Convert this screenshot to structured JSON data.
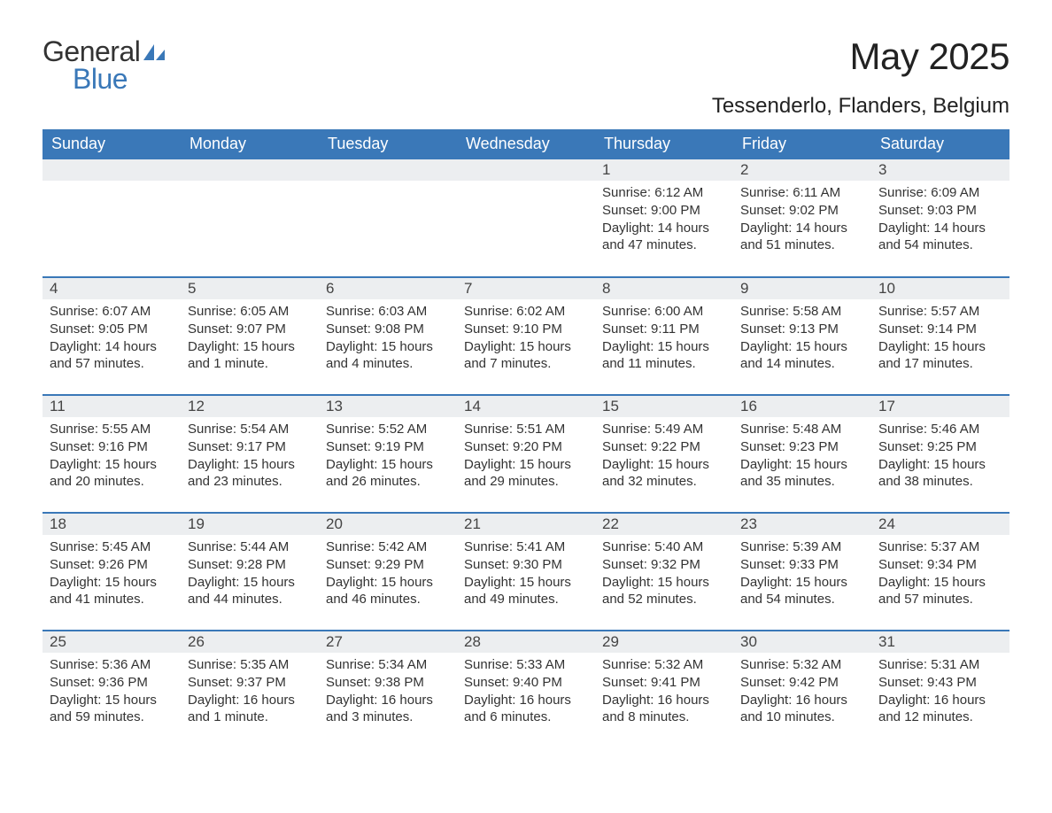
{
  "colors": {
    "header_bg": "#3a78b8",
    "header_text": "#ffffff",
    "daynum_bg": "#eceef0",
    "border": "#3a78b8",
    "body_text": "#333333",
    "logo_blue": "#3a78b8"
  },
  "fonts": {
    "family": "Arial, Helvetica, sans-serif",
    "title_size_pt": 32,
    "location_size_pt": 18,
    "dow_size_pt": 14,
    "body_size_pt": 11
  },
  "logo": {
    "text1": "General",
    "text2": "Blue"
  },
  "title": "May 2025",
  "location": "Tessenderlo, Flanders, Belgium",
  "days_of_week": [
    "Sunday",
    "Monday",
    "Tuesday",
    "Wednesday",
    "Thursday",
    "Friday",
    "Saturday"
  ],
  "weeks": [
    [
      null,
      null,
      null,
      null,
      {
        "n": "1",
        "sr": "Sunrise: 6:12 AM",
        "ss": "Sunset: 9:00 PM",
        "d1": "Daylight: 14 hours",
        "d2": "and 47 minutes."
      },
      {
        "n": "2",
        "sr": "Sunrise: 6:11 AM",
        "ss": "Sunset: 9:02 PM",
        "d1": "Daylight: 14 hours",
        "d2": "and 51 minutes."
      },
      {
        "n": "3",
        "sr": "Sunrise: 6:09 AM",
        "ss": "Sunset: 9:03 PM",
        "d1": "Daylight: 14 hours",
        "d2": "and 54 minutes."
      }
    ],
    [
      {
        "n": "4",
        "sr": "Sunrise: 6:07 AM",
        "ss": "Sunset: 9:05 PM",
        "d1": "Daylight: 14 hours",
        "d2": "and 57 minutes."
      },
      {
        "n": "5",
        "sr": "Sunrise: 6:05 AM",
        "ss": "Sunset: 9:07 PM",
        "d1": "Daylight: 15 hours",
        "d2": "and 1 minute."
      },
      {
        "n": "6",
        "sr": "Sunrise: 6:03 AM",
        "ss": "Sunset: 9:08 PM",
        "d1": "Daylight: 15 hours",
        "d2": "and 4 minutes."
      },
      {
        "n": "7",
        "sr": "Sunrise: 6:02 AM",
        "ss": "Sunset: 9:10 PM",
        "d1": "Daylight: 15 hours",
        "d2": "and 7 minutes."
      },
      {
        "n": "8",
        "sr": "Sunrise: 6:00 AM",
        "ss": "Sunset: 9:11 PM",
        "d1": "Daylight: 15 hours",
        "d2": "and 11 minutes."
      },
      {
        "n": "9",
        "sr": "Sunrise: 5:58 AM",
        "ss": "Sunset: 9:13 PM",
        "d1": "Daylight: 15 hours",
        "d2": "and 14 minutes."
      },
      {
        "n": "10",
        "sr": "Sunrise: 5:57 AM",
        "ss": "Sunset: 9:14 PM",
        "d1": "Daylight: 15 hours",
        "d2": "and 17 minutes."
      }
    ],
    [
      {
        "n": "11",
        "sr": "Sunrise: 5:55 AM",
        "ss": "Sunset: 9:16 PM",
        "d1": "Daylight: 15 hours",
        "d2": "and 20 minutes."
      },
      {
        "n": "12",
        "sr": "Sunrise: 5:54 AM",
        "ss": "Sunset: 9:17 PM",
        "d1": "Daylight: 15 hours",
        "d2": "and 23 minutes."
      },
      {
        "n": "13",
        "sr": "Sunrise: 5:52 AM",
        "ss": "Sunset: 9:19 PM",
        "d1": "Daylight: 15 hours",
        "d2": "and 26 minutes."
      },
      {
        "n": "14",
        "sr": "Sunrise: 5:51 AM",
        "ss": "Sunset: 9:20 PM",
        "d1": "Daylight: 15 hours",
        "d2": "and 29 minutes."
      },
      {
        "n": "15",
        "sr": "Sunrise: 5:49 AM",
        "ss": "Sunset: 9:22 PM",
        "d1": "Daylight: 15 hours",
        "d2": "and 32 minutes."
      },
      {
        "n": "16",
        "sr": "Sunrise: 5:48 AM",
        "ss": "Sunset: 9:23 PM",
        "d1": "Daylight: 15 hours",
        "d2": "and 35 minutes."
      },
      {
        "n": "17",
        "sr": "Sunrise: 5:46 AM",
        "ss": "Sunset: 9:25 PM",
        "d1": "Daylight: 15 hours",
        "d2": "and 38 minutes."
      }
    ],
    [
      {
        "n": "18",
        "sr": "Sunrise: 5:45 AM",
        "ss": "Sunset: 9:26 PM",
        "d1": "Daylight: 15 hours",
        "d2": "and 41 minutes."
      },
      {
        "n": "19",
        "sr": "Sunrise: 5:44 AM",
        "ss": "Sunset: 9:28 PM",
        "d1": "Daylight: 15 hours",
        "d2": "and 44 minutes."
      },
      {
        "n": "20",
        "sr": "Sunrise: 5:42 AM",
        "ss": "Sunset: 9:29 PM",
        "d1": "Daylight: 15 hours",
        "d2": "and 46 minutes."
      },
      {
        "n": "21",
        "sr": "Sunrise: 5:41 AM",
        "ss": "Sunset: 9:30 PM",
        "d1": "Daylight: 15 hours",
        "d2": "and 49 minutes."
      },
      {
        "n": "22",
        "sr": "Sunrise: 5:40 AM",
        "ss": "Sunset: 9:32 PM",
        "d1": "Daylight: 15 hours",
        "d2": "and 52 minutes."
      },
      {
        "n": "23",
        "sr": "Sunrise: 5:39 AM",
        "ss": "Sunset: 9:33 PM",
        "d1": "Daylight: 15 hours",
        "d2": "and 54 minutes."
      },
      {
        "n": "24",
        "sr": "Sunrise: 5:37 AM",
        "ss": "Sunset: 9:34 PM",
        "d1": "Daylight: 15 hours",
        "d2": "and 57 minutes."
      }
    ],
    [
      {
        "n": "25",
        "sr": "Sunrise: 5:36 AM",
        "ss": "Sunset: 9:36 PM",
        "d1": "Daylight: 15 hours",
        "d2": "and 59 minutes."
      },
      {
        "n": "26",
        "sr": "Sunrise: 5:35 AM",
        "ss": "Sunset: 9:37 PM",
        "d1": "Daylight: 16 hours",
        "d2": "and 1 minute."
      },
      {
        "n": "27",
        "sr": "Sunrise: 5:34 AM",
        "ss": "Sunset: 9:38 PM",
        "d1": "Daylight: 16 hours",
        "d2": "and 3 minutes."
      },
      {
        "n": "28",
        "sr": "Sunrise: 5:33 AM",
        "ss": "Sunset: 9:40 PM",
        "d1": "Daylight: 16 hours",
        "d2": "and 6 minutes."
      },
      {
        "n": "29",
        "sr": "Sunrise: 5:32 AM",
        "ss": "Sunset: 9:41 PM",
        "d1": "Daylight: 16 hours",
        "d2": "and 8 minutes."
      },
      {
        "n": "30",
        "sr": "Sunrise: 5:32 AM",
        "ss": "Sunset: 9:42 PM",
        "d1": "Daylight: 16 hours",
        "d2": "and 10 minutes."
      },
      {
        "n": "31",
        "sr": "Sunrise: 5:31 AM",
        "ss": "Sunset: 9:43 PM",
        "d1": "Daylight: 16 hours",
        "d2": "and 12 minutes."
      }
    ]
  ]
}
